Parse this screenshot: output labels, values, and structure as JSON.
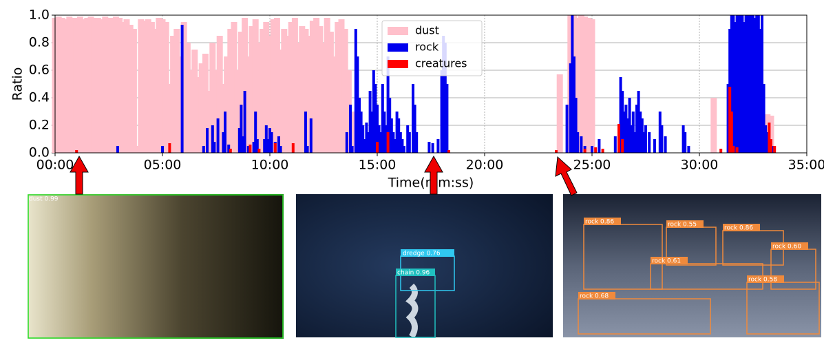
{
  "chart_data": {
    "type": "bar",
    "xlabel": "Time(mm:ss)",
    "ylabel": "Ratio",
    "xlim": [
      0,
      2100
    ],
    "ylim": [
      0,
      1
    ],
    "xticks": [
      {
        "value": 0,
        "label": "00:00"
      },
      {
        "value": 300,
        "label": "05:00"
      },
      {
        "value": 600,
        "label": "10:00"
      },
      {
        "value": 900,
        "label": "15:00"
      },
      {
        "value": 1200,
        "label": "20:00"
      },
      {
        "value": 1500,
        "label": "25:00"
      },
      {
        "value": 1800,
        "label": "30:00"
      },
      {
        "value": 2100,
        "label": "35:00"
      }
    ],
    "yticks": [
      {
        "value": 0,
        "label": "0.0"
      },
      {
        "value": 0.2,
        "label": "0.2"
      },
      {
        "value": 0.4,
        "label": "0.4"
      },
      {
        "value": 0.6,
        "label": "0.6"
      },
      {
        "value": 0.8,
        "label": "0.8"
      },
      {
        "value": 1,
        "label": "1.0"
      }
    ],
    "grid": true,
    "legend": "upper center",
    "series": [
      {
        "name": "dust",
        "color": "#ffc0cb",
        "x": [
          0,
          10,
          20,
          30,
          40,
          50,
          60,
          70,
          80,
          90,
          100,
          110,
          120,
          130,
          140,
          150,
          160,
          170,
          180,
          190,
          200,
          210,
          220,
          230,
          240,
          250,
          260,
          270,
          280,
          290,
          300,
          310,
          320,
          330,
          340,
          350,
          360,
          370,
          380,
          390,
          400,
          410,
          420,
          430,
          440,
          450,
          460,
          470,
          480,
          490,
          500,
          510,
          520,
          530,
          540,
          550,
          560,
          570,
          580,
          590,
          600,
          610,
          620,
          630,
          640,
          650,
          660,
          670,
          680,
          690,
          700,
          710,
          720,
          730,
          740,
          750,
          760,
          770,
          780,
          790,
          800,
          810,
          820,
          830,
          840,
          1410,
          1440,
          1450,
          1460,
          1470,
          1480,
          1490,
          1500,
          1840,
          1990,
          2000
        ],
        "values": [
          0.98,
          0.99,
          0.98,
          0.97,
          0.99,
          0.98,
          0.98,
          0.99,
          0.97,
          0.98,
          0.99,
          0.98,
          0.98,
          0.97,
          0.99,
          0.98,
          0.98,
          0.99,
          0.98,
          0.95,
          0.97,
          0.93,
          0.9,
          0.05,
          0.97,
          0.96,
          0.97,
          0.95,
          0.9,
          0.98,
          0.97,
          0.95,
          0.5,
          0.85,
          0.9,
          0.7,
          0.95,
          0.8,
          0.6,
          0.75,
          0.55,
          0.65,
          0.72,
          0.45,
          0.8,
          0.6,
          0.85,
          0.5,
          0.7,
          0.9,
          0.95,
          0.6,
          0.88,
          0.98,
          0.7,
          0.92,
          0.97,
          0.8,
          0.9,
          0.95,
          0.85,
          0.97,
          0.98,
          0.75,
          0.9,
          0.85,
          0.95,
          0.98,
          0.8,
          0.92,
          0.9,
          0.85,
          0.96,
          0.98,
          0.92,
          0.8,
          0.98,
          0.88,
          0.7,
          0.95,
          0.97,
          0.9,
          0.6,
          0.3,
          0.1,
          0.57,
          1.0,
          1.0,
          0.98,
          1.0,
          0.99,
          0.98,
          0.97,
          0.4,
          0.28,
          0.27
        ]
      },
      {
        "name": "rock",
        "color": "#0000ee",
        "x": [
          175,
          300,
          355,
          415,
          425,
          440,
          445,
          455,
          470,
          475,
          485,
          515,
          520,
          525,
          530,
          540,
          555,
          560,
          565,
          585,
          590,
          595,
          600,
          605,
          615,
          625,
          630,
          700,
          705,
          715,
          815,
          825,
          830,
          840,
          845,
          850,
          855,
          860,
          865,
          870,
          875,
          880,
          885,
          890,
          895,
          900,
          905,
          910,
          915,
          920,
          925,
          930,
          935,
          940,
          945,
          950,
          955,
          960,
          965,
          970,
          975,
          985,
          990,
          1000,
          1005,
          1010,
          1045,
          1055,
          1070,
          1080,
          1085,
          1090,
          1095,
          1430,
          1440,
          1445,
          1450,
          1455,
          1460,
          1470,
          1480,
          1500,
          1520,
          1565,
          1575,
          1580,
          1585,
          1590,
          1595,
          1600,
          1605,
          1610,
          1615,
          1620,
          1625,
          1630,
          1635,
          1640,
          1645,
          1650,
          1660,
          1675,
          1690,
          1695,
          1705,
          1755,
          1760,
          1770,
          1880,
          1885,
          1890,
          1895,
          1900,
          1905,
          1910,
          1915,
          1920,
          1925,
          1930,
          1935,
          1940,
          1945,
          1950,
          1955,
          1960,
          1965,
          1970,
          1975,
          1980,
          1985,
          1990,
          2000,
          2005
        ],
        "values": [
          0.05,
          0.05,
          0.93,
          0.05,
          0.18,
          0.2,
          0.08,
          0.25,
          0.15,
          0.3,
          0.06,
          0.18,
          0.35,
          0.12,
          0.45,
          0.05,
          0.08,
          0.3,
          0.1,
          0.1,
          0.2,
          0.1,
          0.18,
          0.15,
          0.08,
          0.12,
          0.05,
          0.3,
          0.05,
          0.25,
          0.15,
          0.35,
          0.05,
          0.9,
          0.7,
          0.4,
          0.3,
          0.2,
          0.1,
          0.22,
          0.15,
          0.45,
          0.3,
          0.6,
          0.5,
          0.35,
          0.2,
          0.15,
          0.5,
          0.3,
          0.2,
          0.7,
          0.4,
          0.25,
          0.15,
          0.1,
          0.3,
          0.25,
          0.15,
          0.1,
          0.05,
          0.2,
          0.15,
          0.5,
          0.35,
          0.15,
          0.08,
          0.07,
          0.1,
          0.6,
          0.85,
          0.8,
          0.5,
          0.35,
          0.65,
          1.0,
          0.7,
          0.4,
          0.15,
          0.12,
          0.05,
          0.05,
          0.1,
          0.12,
          0.2,
          0.55,
          0.45,
          0.3,
          0.35,
          0.25,
          0.4,
          0.2,
          0.3,
          0.15,
          0.35,
          0.45,
          0.3,
          0.25,
          0.15,
          0.2,
          0.15,
          0.1,
          0.3,
          0.2,
          0.12,
          0.2,
          0.15,
          0.05,
          0.5,
          0.9,
          1.0,
          1.0,
          0.95,
          1.0,
          1.0,
          1.0,
          1.0,
          0.95,
          1.0,
          1.0,
          1.0,
          1.0,
          1.0,
          0.98,
          1.0,
          1.0,
          0.9,
          1.0,
          0.5,
          0.2,
          0.15,
          0.1,
          0.05
        ]
      },
      {
        "name": "creatures",
        "color": "#ff0000",
        "x": [
          60,
          320,
          490,
          545,
          570,
          615,
          665,
          900,
          930,
          1100,
          1400,
          1480,
          1510,
          1530,
          1575,
          1585,
          1860,
          1885,
          1890,
          1895,
          1905,
          1995,
          2000,
          2010
        ],
        "values": [
          0.02,
          0.07,
          0.03,
          0.06,
          0.03,
          0.07,
          0.07,
          0.08,
          0.15,
          0.02,
          0.02,
          0.03,
          0.04,
          0.03,
          0.21,
          0.1,
          0.03,
          0.48,
          0.3,
          0.05,
          0.04,
          0.22,
          0.1,
          0.05
        ]
      }
    ]
  },
  "panels": [
    {
      "detections": [
        "dust 0.99"
      ]
    },
    {
      "detections": [
        "dredge 0.76",
        "chain 0.96"
      ]
    },
    {
      "detections": [
        "rock 0.86",
        "rock 0.55",
        "rock 0.86",
        "rock 0.60",
        "rock 0.61",
        "rock 0.58",
        "rock 0.68"
      ]
    }
  ]
}
